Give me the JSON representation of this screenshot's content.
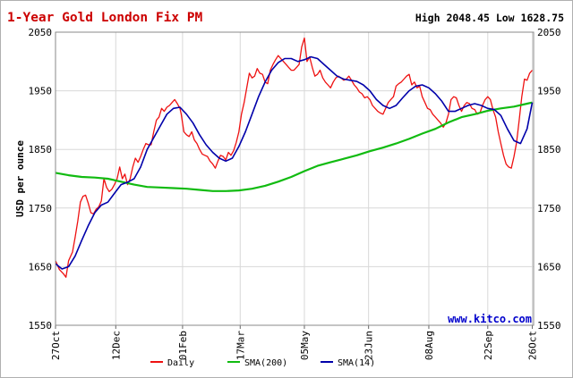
{
  "chart_data": {
    "type": "line",
    "title": "1-Year Gold London Fix PM",
    "stats_text": "High 2048.45 Low 1628.75",
    "ylabel": "USD per ounce",
    "watermark": "www.kitco.com",
    "ylim": [
      1550,
      2050
    ],
    "y_ticks": [
      1550,
      1650,
      1750,
      1850,
      1950,
      2050
    ],
    "x_range": [
      0,
      365
    ],
    "x_ticks": [
      {
        "label": "27Oct",
        "x": 0
      },
      {
        "label": "12Dec",
        "x": 46
      },
      {
        "label": "01Feb",
        "x": 97
      },
      {
        "label": "17Mar",
        "x": 141
      },
      {
        "label": "05May",
        "x": 190
      },
      {
        "label": "23Jun",
        "x": 239
      },
      {
        "label": "08Aug",
        "x": 285
      },
      {
        "label": "22Sep",
        "x": 330
      },
      {
        "label": "26Oct",
        "x": 364
      }
    ],
    "legend_position": "bottom",
    "colors": {
      "title": "#cc0000",
      "daily": "#ee1111",
      "sma200": "#11bb11",
      "sma14": "#0000aa",
      "watermark": "#0000cc",
      "grid": "#d8d8d8"
    },
    "series": [
      {
        "name": "Daily",
        "color": "#ee1111",
        "points": [
          [
            0,
            1660
          ],
          [
            3,
            1645
          ],
          [
            6,
            1638
          ],
          [
            8,
            1632
          ],
          [
            10,
            1660
          ],
          [
            13,
            1675
          ],
          [
            15,
            1700
          ],
          [
            17,
            1728
          ],
          [
            19,
            1760
          ],
          [
            21,
            1770
          ],
          [
            23,
            1772
          ],
          [
            25,
            1758
          ],
          [
            27,
            1742
          ],
          [
            29,
            1740
          ],
          [
            31,
            1748
          ],
          [
            33,
            1752
          ],
          [
            35,
            1762
          ],
          [
            37,
            1800
          ],
          [
            39,
            1785
          ],
          [
            41,
            1778
          ],
          [
            43,
            1782
          ],
          [
            45,
            1790
          ],
          [
            47,
            1800
          ],
          [
            49,
            1820
          ],
          [
            51,
            1800
          ],
          [
            53,
            1808
          ],
          [
            55,
            1790
          ],
          [
            57,
            1800
          ],
          [
            59,
            1820
          ],
          [
            61,
            1835
          ],
          [
            63,
            1828
          ],
          [
            65,
            1838
          ],
          [
            67,
            1850
          ],
          [
            69,
            1860
          ],
          [
            71,
            1858
          ],
          [
            73,
            1858
          ],
          [
            75,
            1880
          ],
          [
            77,
            1900
          ],
          [
            79,
            1905
          ],
          [
            81,
            1920
          ],
          [
            83,
            1915
          ],
          [
            85,
            1922
          ],
          [
            87,
            1925
          ],
          [
            89,
            1930
          ],
          [
            91,
            1935
          ],
          [
            93,
            1928
          ],
          [
            95,
            1920
          ],
          [
            96,
            1910
          ],
          [
            98,
            1880
          ],
          [
            100,
            1875
          ],
          [
            102,
            1872
          ],
          [
            104,
            1880
          ],
          [
            106,
            1866
          ],
          [
            108,
            1860
          ],
          [
            110,
            1850
          ],
          [
            112,
            1842
          ],
          [
            114,
            1840
          ],
          [
            116,
            1838
          ],
          [
            118,
            1830
          ],
          [
            120,
            1825
          ],
          [
            122,
            1818
          ],
          [
            124,
            1830
          ],
          [
            126,
            1840
          ],
          [
            128,
            1838
          ],
          [
            130,
            1832
          ],
          [
            132,
            1845
          ],
          [
            134,
            1840
          ],
          [
            136,
            1848
          ],
          [
            138,
            1862
          ],
          [
            140,
            1880
          ],
          [
            142,
            1910
          ],
          [
            144,
            1930
          ],
          [
            146,
            1955
          ],
          [
            148,
            1980
          ],
          [
            150,
            1972
          ],
          [
            152,
            1975
          ],
          [
            154,
            1988
          ],
          [
            156,
            1980
          ],
          [
            158,
            1978
          ],
          [
            160,
            1965
          ],
          [
            162,
            1962
          ],
          [
            164,
            1985
          ],
          [
            166,
            1995
          ],
          [
            168,
            2003
          ],
          [
            170,
            2010
          ],
          [
            172,
            2005
          ],
          [
            174,
            2000
          ],
          [
            176,
            1995
          ],
          [
            178,
            1990
          ],
          [
            180,
            1985
          ],
          [
            182,
            1985
          ],
          [
            184,
            1990
          ],
          [
            186,
            1995
          ],
          [
            188,
            2025
          ],
          [
            190,
            2040
          ],
          [
            192,
            2000
          ],
          [
            194,
            2008
          ],
          [
            196,
            1990
          ],
          [
            198,
            1975
          ],
          [
            200,
            1978
          ],
          [
            202,
            1985
          ],
          [
            204,
            1972
          ],
          [
            206,
            1965
          ],
          [
            208,
            1960
          ],
          [
            210,
            1955
          ],
          [
            212,
            1965
          ],
          [
            214,
            1972
          ],
          [
            216,
            1975
          ],
          [
            218,
            1972
          ],
          [
            220,
            1968
          ],
          [
            222,
            1970
          ],
          [
            224,
            1975
          ],
          [
            226,
            1968
          ],
          [
            228,
            1960
          ],
          [
            230,
            1955
          ],
          [
            232,
            1948
          ],
          [
            234,
            1945
          ],
          [
            236,
            1938
          ],
          [
            238,
            1940
          ],
          [
            240,
            1935
          ],
          [
            242,
            1925
          ],
          [
            244,
            1920
          ],
          [
            246,
            1915
          ],
          [
            248,
            1912
          ],
          [
            250,
            1910
          ],
          [
            252,
            1920
          ],
          [
            254,
            1930
          ],
          [
            256,
            1935
          ],
          [
            258,
            1940
          ],
          [
            260,
            1958
          ],
          [
            262,
            1962
          ],
          [
            264,
            1965
          ],
          [
            266,
            1970
          ],
          [
            268,
            1975
          ],
          [
            270,
            1978
          ],
          [
            272,
            1960
          ],
          [
            274,
            1965
          ],
          [
            276,
            1955
          ],
          [
            278,
            1958
          ],
          [
            280,
            1940
          ],
          [
            282,
            1930
          ],
          [
            284,
            1920
          ],
          [
            286,
            1918
          ],
          [
            288,
            1910
          ],
          [
            290,
            1905
          ],
          [
            292,
            1900
          ],
          [
            294,
            1895
          ],
          [
            296,
            1888
          ],
          [
            298,
            1895
          ],
          [
            300,
            1910
          ],
          [
            302,
            1935
          ],
          [
            304,
            1940
          ],
          [
            306,
            1938
          ],
          [
            308,
            1925
          ],
          [
            310,
            1915
          ],
          [
            312,
            1925
          ],
          [
            314,
            1930
          ],
          [
            316,
            1928
          ],
          [
            318,
            1920
          ],
          [
            320,
            1918
          ],
          [
            322,
            1910
          ],
          [
            324,
            1912
          ],
          [
            326,
            1925
          ],
          [
            328,
            1935
          ],
          [
            330,
            1940
          ],
          [
            332,
            1935
          ],
          [
            334,
            1918
          ],
          [
            336,
            1905
          ],
          [
            338,
            1880
          ],
          [
            340,
            1860
          ],
          [
            342,
            1840
          ],
          [
            344,
            1825
          ],
          [
            346,
            1820
          ],
          [
            348,
            1818
          ],
          [
            350,
            1838
          ],
          [
            352,
            1862
          ],
          [
            354,
            1900
          ],
          [
            356,
            1940
          ],
          [
            358,
            1970
          ],
          [
            360,
            1968
          ],
          [
            362,
            1980
          ],
          [
            364,
            1985
          ]
        ]
      },
      {
        "name": "SMA(200)",
        "color": "#11bb11",
        "points": [
          [
            0,
            1810
          ],
          [
            10,
            1806
          ],
          [
            20,
            1803
          ],
          [
            30,
            1802
          ],
          [
            40,
            1800
          ],
          [
            50,
            1795
          ],
          [
            60,
            1790
          ],
          [
            70,
            1786
          ],
          [
            80,
            1785
          ],
          [
            90,
            1784
          ],
          [
            100,
            1783
          ],
          [
            110,
            1781
          ],
          [
            120,
            1779
          ],
          [
            130,
            1779
          ],
          [
            140,
            1780
          ],
          [
            150,
            1783
          ],
          [
            160,
            1788
          ],
          [
            170,
            1795
          ],
          [
            180,
            1803
          ],
          [
            190,
            1813
          ],
          [
            200,
            1822
          ],
          [
            210,
            1828
          ],
          [
            220,
            1834
          ],
          [
            230,
            1840
          ],
          [
            240,
            1847
          ],
          [
            250,
            1853
          ],
          [
            260,
            1860
          ],
          [
            270,
            1868
          ],
          [
            280,
            1877
          ],
          [
            290,
            1885
          ],
          [
            300,
            1896
          ],
          [
            310,
            1905
          ],
          [
            320,
            1910
          ],
          [
            330,
            1916
          ],
          [
            340,
            1920
          ],
          [
            350,
            1923
          ],
          [
            360,
            1928
          ],
          [
            364,
            1930
          ]
        ]
      },
      {
        "name": "SMA(14)",
        "color": "#0000aa",
        "points": [
          [
            0,
            1655
          ],
          [
            5,
            1646
          ],
          [
            10,
            1650
          ],
          [
            15,
            1668
          ],
          [
            20,
            1695
          ],
          [
            25,
            1720
          ],
          [
            30,
            1742
          ],
          [
            35,
            1755
          ],
          [
            40,
            1760
          ],
          [
            45,
            1775
          ],
          [
            50,
            1790
          ],
          [
            55,
            1794
          ],
          [
            60,
            1800
          ],
          [
            65,
            1820
          ],
          [
            70,
            1850
          ],
          [
            75,
            1870
          ],
          [
            80,
            1890
          ],
          [
            85,
            1910
          ],
          [
            90,
            1920
          ],
          [
            95,
            1922
          ],
          [
            100,
            1910
          ],
          [
            105,
            1895
          ],
          [
            110,
            1875
          ],
          [
            115,
            1858
          ],
          [
            120,
            1845
          ],
          [
            125,
            1835
          ],
          [
            130,
            1830
          ],
          [
            135,
            1835
          ],
          [
            140,
            1855
          ],
          [
            145,
            1880
          ],
          [
            150,
            1910
          ],
          [
            155,
            1940
          ],
          [
            160,
            1965
          ],
          [
            165,
            1985
          ],
          [
            170,
            1998
          ],
          [
            175,
            2005
          ],
          [
            180,
            2005
          ],
          [
            185,
            2000
          ],
          [
            190,
            2003
          ],
          [
            195,
            2008
          ],
          [
            200,
            2005
          ],
          [
            205,
            1995
          ],
          [
            210,
            1985
          ],
          [
            215,
            1975
          ],
          [
            220,
            1970
          ],
          [
            225,
            1968
          ],
          [
            230,
            1966
          ],
          [
            235,
            1960
          ],
          [
            240,
            1950
          ],
          [
            245,
            1935
          ],
          [
            250,
            1925
          ],
          [
            255,
            1920
          ],
          [
            260,
            1925
          ],
          [
            265,
            1938
          ],
          [
            270,
            1950
          ],
          [
            275,
            1958
          ],
          [
            280,
            1960
          ],
          [
            285,
            1955
          ],
          [
            290,
            1945
          ],
          [
            295,
            1932
          ],
          [
            300,
            1915
          ],
          [
            305,
            1915
          ],
          [
            310,
            1920
          ],
          [
            315,
            1925
          ],
          [
            320,
            1928
          ],
          [
            325,
            1925
          ],
          [
            330,
            1920
          ],
          [
            335,
            1918
          ],
          [
            340,
            1908
          ],
          [
            345,
            1885
          ],
          [
            350,
            1865
          ],
          [
            355,
            1860
          ],
          [
            360,
            1885
          ],
          [
            364,
            1930
          ]
        ]
      }
    ]
  }
}
